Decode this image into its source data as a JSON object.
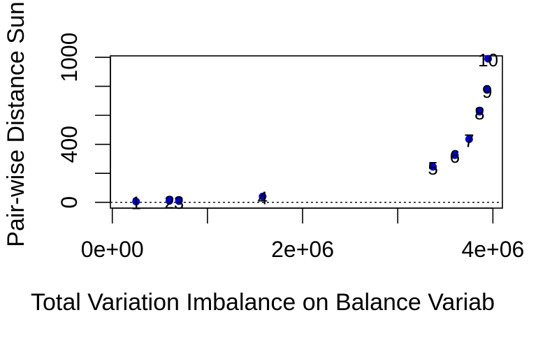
{
  "chart_data": {
    "type": "scatter",
    "title": "",
    "xlabel": "Total Variation Imbalance on Balance Variab",
    "ylabel": "Pair-wise Distance Sun",
    "xlim": [
      -20000,
      4100000
    ],
    "ylim": [
      -40,
      1010
    ],
    "x_ticks": [
      0,
      1000000,
      2000000,
      3000000,
      4000000
    ],
    "x_tick_labels": [
      "0e+00",
      "",
      "2e+06",
      "",
      "4e+06"
    ],
    "y_ticks": [
      0,
      200,
      400,
      600,
      800,
      1000
    ],
    "y_tick_labels": [
      "0",
      "",
      "400",
      "",
      "",
      "1000"
    ],
    "reference_line": {
      "y": 0,
      "style": "dotted"
    },
    "point_color": "#0000cc",
    "points": [
      {
        "label": "1",
        "x": 250000,
        "y": 5
      },
      {
        "label": "2",
        "x": 600000,
        "y": 10
      },
      {
        "label": "3",
        "x": 700000,
        "y": 8
      },
      {
        "label": "4",
        "x": 1580000,
        "y": 40
      },
      {
        "label": "5",
        "x": 3370000,
        "y": 245
      },
      {
        "label": "6",
        "x": 3600000,
        "y": 325
      },
      {
        "label": "7",
        "x": 3750000,
        "y": 435
      },
      {
        "label": "8",
        "x": 3860000,
        "y": 625
      },
      {
        "label": "9",
        "x": 3940000,
        "y": 775
      },
      {
        "label": "10",
        "x": 3950000,
        "y": 990
      }
    ]
  }
}
